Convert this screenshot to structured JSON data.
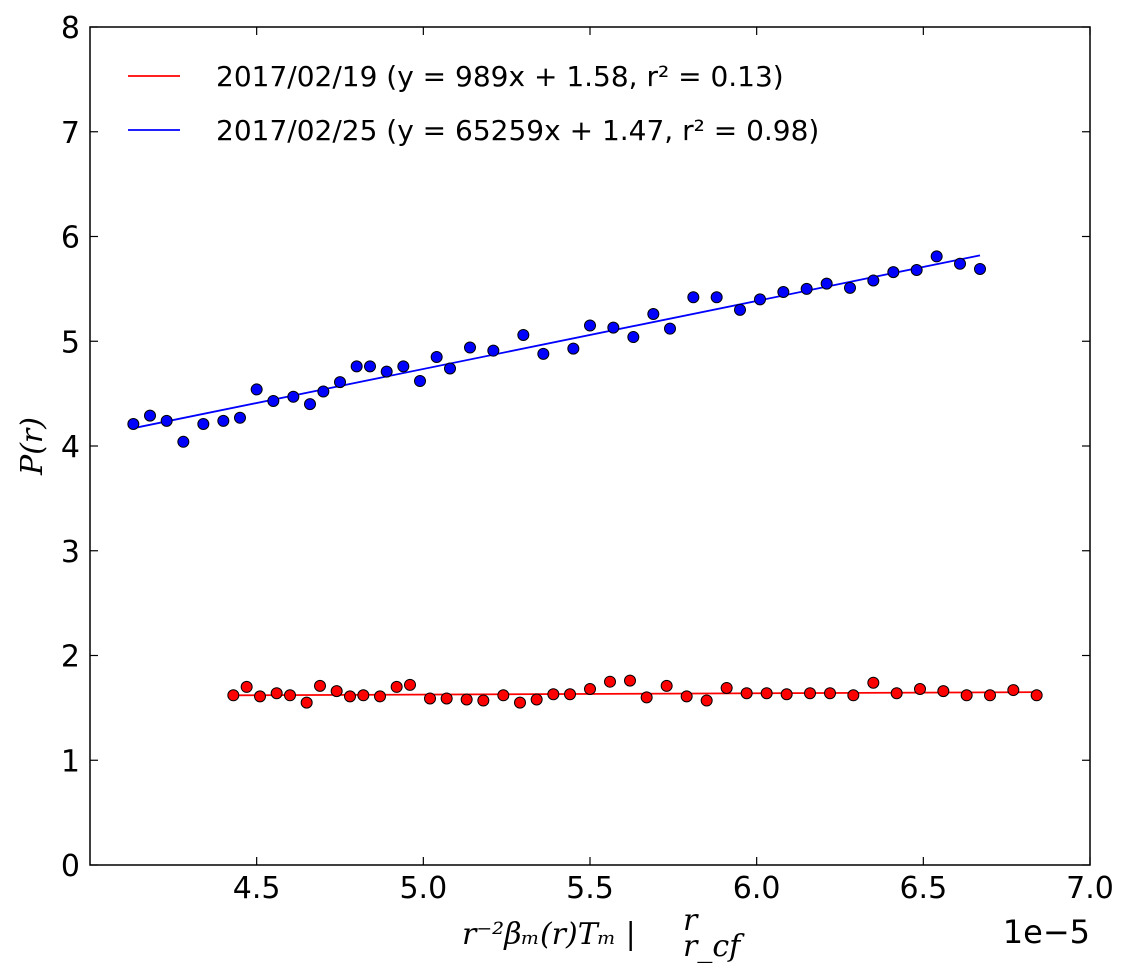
{
  "chart_data": {
    "type": "scatter",
    "title": "",
    "xlabel": "r⁻²βₘ(r)Tₘ |",
    "xlabel_sup": "r",
    "xlabel_sub": "r_cf",
    "ylabel": "P(r)",
    "x_offset_label": "1e−5",
    "xlim": [
      4.0,
      7.0
    ],
    "ylim": [
      0,
      8
    ],
    "x_ticks": [
      "4.5",
      "5.0",
      "5.5",
      "6.0",
      "6.5",
      "7.0"
    ],
    "y_ticks": [
      "0",
      "1",
      "2",
      "3",
      "4",
      "5",
      "6",
      "7",
      "8"
    ],
    "x_tick_values": [
      4.5,
      5.0,
      5.5,
      6.0,
      6.5,
      7.0
    ],
    "y_tick_values": [
      0,
      1,
      2,
      3,
      4,
      5,
      6,
      7,
      8
    ],
    "grid": false,
    "legend_position": "top-left",
    "series": [
      {
        "name": "2017/02/19 (y = 989x + 1.58, r² = 0.13)",
        "color": "#ff0000",
        "fit_line": {
          "x": [
            4.43,
            6.84
          ],
          "y": [
            1.62,
            1.65
          ]
        },
        "points": [
          [
            4.43,
            1.62
          ],
          [
            4.47,
            1.7
          ],
          [
            4.51,
            1.61
          ],
          [
            4.56,
            1.64
          ],
          [
            4.6,
            1.62
          ],
          [
            4.65,
            1.55
          ],
          [
            4.69,
            1.71
          ],
          [
            4.74,
            1.66
          ],
          [
            4.78,
            1.61
          ],
          [
            4.82,
            1.62
          ],
          [
            4.87,
            1.61
          ],
          [
            4.92,
            1.7
          ],
          [
            4.96,
            1.72
          ],
          [
            5.02,
            1.59
          ],
          [
            5.07,
            1.59
          ],
          [
            5.13,
            1.58
          ],
          [
            5.18,
            1.57
          ],
          [
            5.24,
            1.62
          ],
          [
            5.29,
            1.55
          ],
          [
            5.34,
            1.58
          ],
          [
            5.39,
            1.63
          ],
          [
            5.44,
            1.63
          ],
          [
            5.5,
            1.68
          ],
          [
            5.56,
            1.75
          ],
          [
            5.62,
            1.76
          ],
          [
            5.67,
            1.6
          ],
          [
            5.73,
            1.71
          ],
          [
            5.79,
            1.61
          ],
          [
            5.85,
            1.57
          ],
          [
            5.91,
            1.69
          ],
          [
            5.97,
            1.64
          ],
          [
            6.03,
            1.64
          ],
          [
            6.09,
            1.63
          ],
          [
            6.16,
            1.64
          ],
          [
            6.22,
            1.64
          ],
          [
            6.29,
            1.62
          ],
          [
            6.35,
            1.74
          ],
          [
            6.42,
            1.64
          ],
          [
            6.49,
            1.68
          ],
          [
            6.56,
            1.66
          ],
          [
            6.63,
            1.62
          ],
          [
            6.7,
            1.62
          ],
          [
            6.77,
            1.67
          ],
          [
            6.84,
            1.62
          ]
        ]
      },
      {
        "name": "2017/02/25 (y = 65259x + 1.47, r² = 0.98)",
        "color": "#0000ff",
        "fit_line": {
          "x": [
            4.13,
            6.67
          ],
          "y": [
            4.17,
            5.82
          ]
        },
        "points": [
          [
            4.13,
            4.21
          ],
          [
            4.18,
            4.29
          ],
          [
            4.23,
            4.24
          ],
          [
            4.28,
            4.04
          ],
          [
            4.34,
            4.21
          ],
          [
            4.4,
            4.24
          ],
          [
            4.45,
            4.27
          ],
          [
            4.5,
            4.54
          ],
          [
            4.55,
            4.43
          ],
          [
            4.61,
            4.47
          ],
          [
            4.66,
            4.4
          ],
          [
            4.7,
            4.52
          ],
          [
            4.75,
            4.61
          ],
          [
            4.8,
            4.76
          ],
          [
            4.84,
            4.76
          ],
          [
            4.89,
            4.71
          ],
          [
            4.94,
            4.76
          ],
          [
            4.99,
            4.62
          ],
          [
            5.04,
            4.85
          ],
          [
            5.08,
            4.74
          ],
          [
            5.14,
            4.94
          ],
          [
            5.21,
            4.91
          ],
          [
            5.3,
            5.06
          ],
          [
            5.36,
            4.88
          ],
          [
            5.45,
            4.93
          ],
          [
            5.5,
            5.15
          ],
          [
            5.57,
            5.13
          ],
          [
            5.63,
            5.04
          ],
          [
            5.69,
            5.26
          ],
          [
            5.74,
            5.12
          ],
          [
            5.81,
            5.42
          ],
          [
            5.88,
            5.42
          ],
          [
            5.95,
            5.3
          ],
          [
            6.01,
            5.4
          ],
          [
            6.08,
            5.47
          ],
          [
            6.15,
            5.5
          ],
          [
            6.21,
            5.55
          ],
          [
            6.28,
            5.51
          ],
          [
            6.35,
            5.58
          ],
          [
            6.41,
            5.66
          ],
          [
            6.48,
            5.68
          ],
          [
            6.54,
            5.81
          ],
          [
            6.61,
            5.74
          ],
          [
            6.67,
            5.69
          ]
        ]
      }
    ]
  }
}
